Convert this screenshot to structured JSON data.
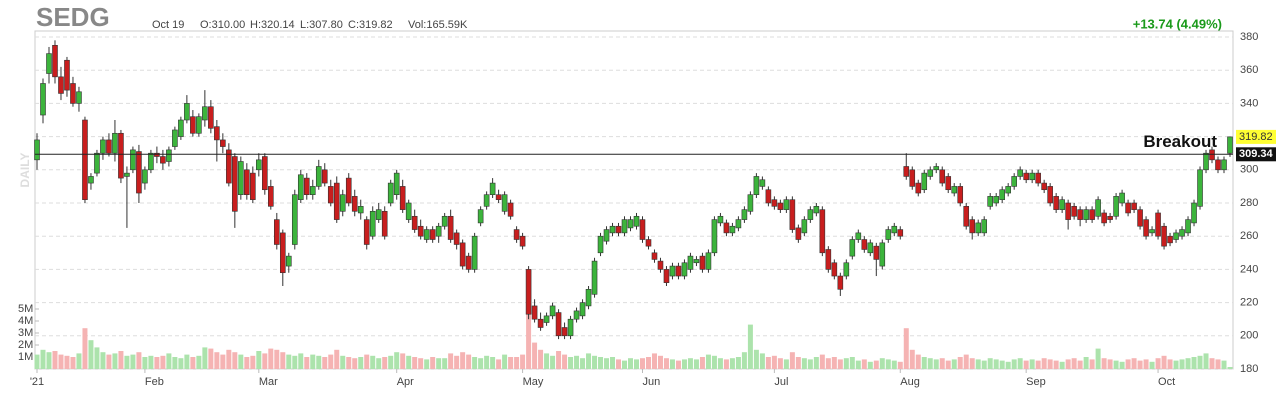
{
  "chart_data": {
    "type": "candlestick",
    "title": "SEDG",
    "date": "Oct 19",
    "header": [
      "O:310.00",
      "H:320.14",
      "L:307.80",
      "C:319.82",
      "Vol:165.59K"
    ],
    "change": "+13.74 (4.49%)",
    "side_label": "DAILY",
    "annotation": "Breakout",
    "breakout_level": 309.34,
    "last_price": 319.82,
    "up_color": "#3cb43c",
    "down_color": "#c81e1e",
    "up_volume_color": "#ace3ac",
    "down_volume_color": "#f5b3b3",
    "change_color": "#1a9a1a",
    "ylim": [
      180,
      380
    ],
    "yticks": [
      180,
      200,
      220,
      240,
      260,
      280,
      300,
      320,
      340,
      360,
      380
    ],
    "grid": true,
    "volume_ylim": [
      0,
      5
    ],
    "volume_ticks": [
      {
        "value": 1,
        "label": "1M"
      },
      {
        "value": 2,
        "label": "2M"
      },
      {
        "value": 3,
        "label": "3M"
      },
      {
        "value": 4,
        "label": "4M"
      },
      {
        "value": 5,
        "label": "5M"
      }
    ],
    "xticks": [
      {
        "value": 0,
        "label": "'21"
      },
      {
        "value": 18,
        "label": "Feb"
      },
      {
        "value": 37,
        "label": "Mar"
      },
      {
        "value": 60,
        "label": "Apr"
      },
      {
        "value": 81,
        "label": "May"
      },
      {
        "value": 101,
        "label": "Jun"
      },
      {
        "value": 123,
        "label": "Jul"
      },
      {
        "value": 144,
        "label": "Aug"
      },
      {
        "value": 165,
        "label": "Sep"
      },
      {
        "value": 187,
        "label": "Oct"
      }
    ],
    "ohlc": [
      [
        306,
        322,
        300,
        318
      ],
      [
        333,
        355,
        328,
        352
      ],
      [
        358,
        374,
        352,
        370
      ],
      [
        375,
        378,
        352,
        356
      ],
      [
        356,
        362,
        342,
        346
      ],
      [
        366,
        368,
        344,
        348
      ],
      [
        352,
        356,
        338,
        340
      ],
      [
        340,
        350,
        335,
        347
      ],
      [
        330,
        332,
        280,
        282
      ],
      [
        292,
        298,
        288,
        296
      ],
      [
        298,
        312,
        296,
        310
      ],
      [
        310,
        320,
        306,
        318
      ],
      [
        318,
        322,
        308,
        310
      ],
      [
        310,
        330,
        305,
        322
      ],
      [
        322,
        324,
        292,
        295
      ],
      [
        296,
        302,
        265,
        298
      ],
      [
        300,
        314,
        298,
        312
      ],
      [
        311,
        315,
        280,
        286
      ],
      [
        292,
        302,
        288,
        300
      ],
      [
        300,
        312,
        298,
        310
      ],
      [
        310,
        314,
        304,
        308
      ],
      [
        308,
        312,
        300,
        304
      ],
      [
        305,
        314,
        302,
        312
      ],
      [
        314,
        326,
        312,
        324
      ],
      [
        320,
        332,
        318,
        330
      ],
      [
        330,
        345,
        328,
        340
      ],
      [
        332,
        336,
        320,
        322
      ],
      [
        322,
        334,
        320,
        332
      ],
      [
        330,
        348,
        326,
        338
      ],
      [
        338,
        342,
        322,
        325
      ],
      [
        326,
        330,
        305,
        318
      ],
      [
        318,
        322,
        310,
        314
      ],
      [
        312,
        316,
        290,
        292
      ],
      [
        308,
        310,
        265,
        275
      ],
      [
        285,
        308,
        282,
        305
      ],
      [
        300,
        304,
        282,
        285
      ],
      [
        298,
        302,
        280,
        282
      ],
      [
        300,
        310,
        296,
        306
      ],
      [
        308,
        310,
        285,
        288
      ],
      [
        290,
        294,
        276,
        278
      ],
      [
        270,
        274,
        252,
        255
      ],
      [
        262,
        264,
        230,
        238
      ],
      [
        242,
        250,
        238,
        248
      ],
      [
        255,
        288,
        252,
        285
      ],
      [
        282,
        300,
        280,
        297
      ],
      [
        295,
        298,
        282,
        285
      ],
      [
        285,
        294,
        282,
        290
      ],
      [
        290,
        306,
        288,
        302
      ],
      [
        300,
        304,
        290,
        292
      ],
      [
        290,
        294,
        278,
        280
      ],
      [
        292,
        296,
        268,
        270
      ],
      [
        275,
        288,
        272,
        285
      ],
      [
        295,
        298,
        278,
        280
      ],
      [
        284,
        288,
        272,
        275
      ],
      [
        274,
        282,
        270,
        278
      ],
      [
        270,
        272,
        252,
        255
      ],
      [
        260,
        278,
        258,
        275
      ],
      [
        270,
        280,
        268,
        276
      ],
      [
        275,
        278,
        258,
        260
      ],
      [
        280,
        294,
        278,
        292
      ],
      [
        285,
        300,
        282,
        298
      ],
      [
        290,
        294,
        274,
        276
      ],
      [
        270,
        282,
        268,
        280
      ],
      [
        272,
        276,
        262,
        264
      ],
      [
        266,
        270,
        258,
        260
      ],
      [
        258,
        266,
        256,
        264
      ],
      [
        264,
        266,
        256,
        258
      ],
      [
        260,
        268,
        256,
        266
      ],
      [
        266,
        274,
        264,
        272
      ],
      [
        272,
        276,
        256,
        258
      ],
      [
        262,
        264,
        252,
        255
      ],
      [
        256,
        258,
        240,
        242
      ],
      [
        248,
        250,
        238,
        240
      ],
      [
        240,
        262,
        238,
        260
      ],
      [
        268,
        278,
        266,
        276
      ],
      [
        278,
        287,
        276,
        285
      ],
      [
        285,
        295,
        283,
        292
      ],
      [
        285,
        288,
        280,
        282
      ],
      [
        275,
        287,
        273,
        285
      ],
      [
        280,
        282,
        270,
        272
      ],
      [
        264,
        266,
        256,
        258
      ],
      [
        260,
        262,
        252,
        254
      ],
      [
        240,
        242,
        210,
        213
      ],
      [
        218,
        222,
        208,
        210
      ],
      [
        210,
        214,
        203,
        205
      ],
      [
        208,
        214,
        206,
        212
      ],
      [
        212,
        220,
        210,
        218
      ],
      [
        214,
        216,
        198,
        200
      ],
      [
        205,
        208,
        198,
        200
      ],
      [
        200,
        212,
        198,
        210
      ],
      [
        210,
        217,
        208,
        215
      ],
      [
        212,
        222,
        210,
        220
      ],
      [
        218,
        230,
        216,
        228
      ],
      [
        225,
        247,
        223,
        245
      ],
      [
        250,
        262,
        248,
        260
      ],
      [
        257,
        266,
        255,
        264
      ],
      [
        262,
        268,
        260,
        266
      ],
      [
        266,
        268,
        260,
        262
      ],
      [
        262,
        272,
        260,
        270
      ],
      [
        265,
        272,
        263,
        270
      ],
      [
        266,
        274,
        264,
        272
      ],
      [
        270,
        272,
        256,
        258
      ],
      [
        258,
        260,
        252,
        254
      ],
      [
        250,
        252,
        244,
        246
      ],
      [
        245,
        247,
        238,
        240
      ],
      [
        240,
        242,
        230,
        232
      ],
      [
        236,
        244,
        234,
        242
      ],
      [
        242,
        244,
        234,
        236
      ],
      [
        236,
        246,
        234,
        244
      ],
      [
        240,
        250,
        238,
        248
      ],
      [
        244,
        248,
        242,
        246
      ],
      [
        248,
        250,
        238,
        240
      ],
      [
        240,
        252,
        238,
        250
      ],
      [
        250,
        272,
        248,
        270
      ],
      [
        268,
        274,
        266,
        272
      ],
      [
        268,
        270,
        260,
        262
      ],
      [
        262,
        268,
        260,
        266
      ],
      [
        265,
        272,
        263,
        270
      ],
      [
        270,
        278,
        268,
        276
      ],
      [
        275,
        287,
        273,
        285
      ],
      [
        285,
        298,
        283,
        296
      ],
      [
        290,
        296,
        288,
        294
      ],
      [
        288,
        290,
        278,
        280
      ],
      [
        282,
        284,
        276,
        278
      ],
      [
        280,
        282,
        274,
        276
      ],
      [
        276,
        284,
        274,
        282
      ],
      [
        282,
        284,
        262,
        264
      ],
      [
        265,
        267,
        256,
        258
      ],
      [
        262,
        272,
        260,
        270
      ],
      [
        270,
        278,
        268,
        276
      ],
      [
        274,
        280,
        272,
        278
      ],
      [
        276,
        278,
        248,
        250
      ],
      [
        252,
        254,
        238,
        240
      ],
      [
        244,
        246,
        234,
        236
      ],
      [
        236,
        238,
        224,
        228
      ],
      [
        236,
        246,
        234,
        244
      ],
      [
        248,
        260,
        246,
        258
      ],
      [
        258,
        264,
        256,
        262
      ],
      [
        258,
        260,
        250,
        252
      ],
      [
        250,
        258,
        248,
        256
      ],
      [
        254,
        256,
        236,
        246
      ],
      [
        242,
        258,
        240,
        256
      ],
      [
        258,
        266,
        256,
        264
      ],
      [
        262,
        268,
        260,
        266
      ],
      [
        264,
        266,
        258,
        260
      ],
      [
        302,
        310,
        294,
        296
      ],
      [
        300,
        302,
        288,
        290
      ],
      [
        292,
        294,
        284,
        286
      ],
      [
        288,
        300,
        286,
        298
      ],
      [
        296,
        302,
        294,
        300
      ],
      [
        300,
        304,
        298,
        302
      ],
      [
        300,
        302,
        290,
        292
      ],
      [
        296,
        298,
        286,
        288
      ],
      [
        286,
        292,
        284,
        290
      ],
      [
        290,
        292,
        278,
        280
      ],
      [
        278,
        280,
        264,
        266
      ],
      [
        270,
        272,
        258,
        262
      ],
      [
        262,
        270,
        260,
        268
      ],
      [
        262,
        272,
        260,
        270
      ],
      [
        278,
        286,
        276,
        284
      ],
      [
        280,
        286,
        278,
        284
      ],
      [
        282,
        290,
        280,
        288
      ],
      [
        286,
        292,
        284,
        290
      ],
      [
        290,
        298,
        288,
        296
      ],
      [
        296,
        302,
        294,
        300
      ],
      [
        298,
        300,
        292,
        294
      ],
      [
        294,
        300,
        292,
        298
      ],
      [
        298,
        300,
        290,
        292
      ],
      [
        292,
        294,
        286,
        288
      ],
      [
        290,
        292,
        278,
        280
      ],
      [
        284,
        286,
        274,
        276
      ],
      [
        276,
        284,
        274,
        282
      ],
      [
        280,
        282,
        264,
        270
      ],
      [
        278,
        280,
        270,
        272
      ],
      [
        276,
        278,
        266,
        270
      ],
      [
        270,
        278,
        268,
        276
      ],
      [
        276,
        278,
        268,
        270
      ],
      [
        272,
        284,
        270,
        282
      ],
      [
        274,
        276,
        266,
        268
      ],
      [
        272,
        274,
        268,
        270
      ],
      [
        272,
        286,
        270,
        284
      ],
      [
        280,
        288,
        278,
        286
      ],
      [
        280,
        282,
        272,
        274
      ],
      [
        280,
        282,
        274,
        276
      ],
      [
        276,
        278,
        264,
        266
      ],
      [
        270,
        272,
        258,
        260
      ],
      [
        262,
        266,
        260,
        264
      ],
      [
        274,
        276,
        258,
        260
      ],
      [
        266,
        268,
        252,
        254
      ],
      [
        260,
        262,
        254,
        256
      ],
      [
        258,
        264,
        256,
        262
      ],
      [
        260,
        266,
        258,
        264
      ],
      [
        262,
        272,
        260,
        270
      ],
      [
        268,
        282,
        266,
        280
      ],
      [
        278,
        302,
        276,
        300
      ],
      [
        300,
        312,
        298,
        310
      ],
      [
        312,
        314,
        304,
        306
      ],
      [
        306,
        308,
        298,
        300
      ],
      [
        300,
        308,
        298,
        306
      ],
      [
        310.0,
        320.14,
        307.8,
        319.82
      ]
    ],
    "volume": [
      1.2,
      1.6,
      1.4,
      1.5,
      1.2,
      1.1,
      1.0,
      1.3,
      3.4,
      2.4,
      1.8,
      1.4,
      1.2,
      1.3,
      1.5,
      1.1,
      1.2,
      1.4,
      1.0,
      1.1,
      1.0,
      1.1,
      1.3,
      1.0,
      0.9,
      1.2,
      1.0,
      1.1,
      1.8,
      1.7,
      1.4,
      1.2,
      1.6,
      1.4,
      1.2,
      1.0,
      1.1,
      1.5,
      1.3,
      1.7,
      1.6,
      1.4,
      1.2,
      1.1,
      1.3,
      1.0,
      1.2,
      1.1,
      1.0,
      1.2,
      1.6,
      1.1,
      1.0,
      0.9,
      1.0,
      1.2,
      1.1,
      0.9,
      1.0,
      1.1,
      1.4,
      1.3,
      1.1,
      1.0,
      0.9,
      0.8,
      1.0,
      0.9,
      0.9,
      1.3,
      1.1,
      1.4,
      1.2,
      1.0,
      0.9,
      1.1,
      1.0,
      0.8,
      1.2,
      1.0,
      1.0,
      1.2,
      4.8,
      2.2,
      1.6,
      1.3,
      1.1,
      1.5,
      1.2,
      1.0,
      1.1,
      0.9,
      1.3,
      1.1,
      1.0,
      0.9,
      1.0,
      0.8,
      0.7,
      0.9,
      0.8,
      0.9,
      1.0,
      1.3,
      1.1,
      0.9,
      0.8,
      0.7,
      0.8,
      0.9,
      0.8,
      1.0,
      1.2,
      1.1,
      0.9,
      0.8,
      0.9,
      1.0,
      1.4,
      3.7,
      1.6,
      1.3,
      1.0,
      1.1,
      0.9,
      0.8,
      1.4,
      1.0,
      0.9,
      0.8,
      1.0,
      1.2,
      0.9,
      1.0,
      0.8,
      0.9,
      1.0,
      0.7,
      0.8,
      0.6,
      0.7,
      0.9,
      0.8,
      0.7,
      0.6,
      3.4,
      1.6,
      1.2,
      1.0,
      0.9,
      0.8,
      0.9,
      0.7,
      0.8,
      1.0,
      1.2,
      0.9,
      0.8,
      0.7,
      0.9,
      0.8,
      0.7,
      0.6,
      0.8,
      0.9,
      0.7,
      0.8,
      0.7,
      0.9,
      0.8,
      0.7,
      0.6,
      0.8,
      0.9,
      0.7,
      1.0,
      0.8,
      1.7,
      0.9,
      0.8,
      0.7,
      0.6,
      0.8,
      0.9,
      0.7,
      0.8,
      0.6,
      0.9,
      1.1,
      0.8,
      0.7,
      0.8,
      0.9,
      1.0,
      1.1,
      1.3,
      0.9,
      0.8,
      0.7,
      0.16559
    ]
  }
}
